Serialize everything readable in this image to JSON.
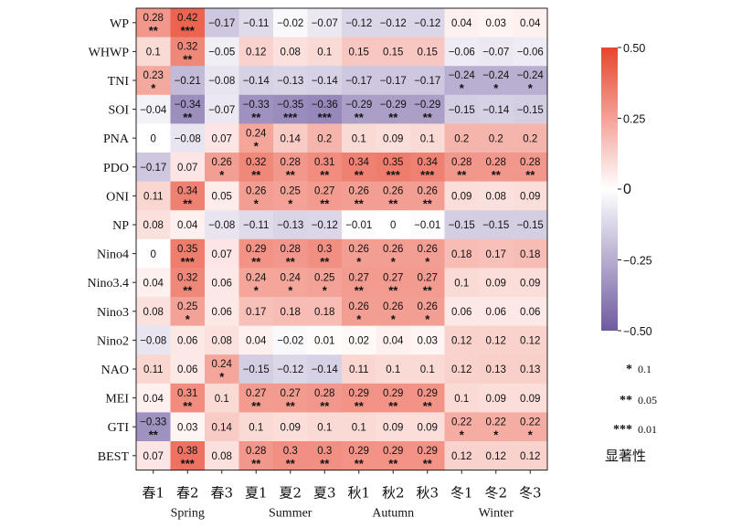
{
  "chart_data": {
    "type": "heatmap",
    "rows": [
      "WP",
      "WHWP",
      "TNI",
      "SOI",
      "PNA",
      "PDO",
      "ONI",
      "NP",
      "Nino4",
      "Nino3.4",
      "Nino3",
      "Nino2",
      "NAO",
      "MEI",
      "GTI",
      "BEST"
    ],
    "columns": [
      "春1",
      "春2",
      "春3",
      "夏1",
      "夏2",
      "夏3",
      "秋1",
      "秋2",
      "秋3",
      "冬1",
      "冬2",
      "冬3"
    ],
    "column_groups": [
      {
        "label": "Spring",
        "columns": [
          0,
          1,
          2
        ]
      },
      {
        "label": "Summer",
        "columns": [
          3,
          4,
          5
        ]
      },
      {
        "label": "Autumn",
        "columns": [
          6,
          7,
          8
        ]
      },
      {
        "label": "Winter",
        "columns": [
          9,
          10,
          11
        ]
      }
    ],
    "values": [
      [
        0.28,
        0.42,
        -0.17,
        -0.11,
        -0.02,
        -0.07,
        -0.12,
        -0.12,
        -0.12,
        0.04,
        0.03,
        0.04
      ],
      [
        0.1,
        0.32,
        -0.05,
        0.12,
        0.08,
        0.1,
        0.15,
        0.15,
        0.15,
        -0.06,
        -0.07,
        -0.06
      ],
      [
        0.23,
        -0.21,
        -0.08,
        -0.14,
        -0.13,
        -0.14,
        -0.17,
        -0.17,
        -0.17,
        -0.24,
        -0.24,
        -0.24
      ],
      [
        -0.04,
        -0.34,
        -0.07,
        -0.33,
        -0.35,
        -0.36,
        -0.29,
        -0.29,
        -0.29,
        -0.15,
        -0.14,
        -0.15
      ],
      [
        0,
        -0.08,
        0.07,
        0.24,
        0.14,
        0.2,
        0.1,
        0.09,
        0.1,
        0.2,
        0.2,
        0.2
      ],
      [
        -0.17,
        0.07,
        0.26,
        0.32,
        0.28,
        0.31,
        0.34,
        0.35,
        0.34,
        0.28,
        0.28,
        0.28
      ],
      [
        0.11,
        0.34,
        0.05,
        0.26,
        0.25,
        0.27,
        0.26,
        0.26,
        0.26,
        0.09,
        0.08,
        0.09
      ],
      [
        0.08,
        0.04,
        -0.08,
        -0.11,
        -0.13,
        -0.12,
        -0.01,
        0,
        -0.01,
        -0.15,
        -0.15,
        -0.15
      ],
      [
        0,
        0.35,
        0.07,
        0.29,
        0.28,
        0.3,
        0.26,
        0.26,
        0.26,
        0.18,
        0.17,
        0.18
      ],
      [
        0.04,
        0.32,
        0.06,
        0.24,
        0.24,
        0.25,
        0.27,
        0.27,
        0.27,
        0.1,
        0.09,
        0.09
      ],
      [
        0.08,
        0.25,
        0.06,
        0.17,
        0.18,
        0.18,
        0.26,
        0.26,
        0.26,
        0.06,
        0.06,
        0.06
      ],
      [
        -0.08,
        0.06,
        0.08,
        0.04,
        -0.02,
        0.01,
        0.02,
        0.04,
        0.03,
        0.12,
        0.12,
        0.12
      ],
      [
        0.11,
        0.06,
        0.24,
        -0.15,
        -0.12,
        -0.14,
        0.11,
        0.1,
        0.1,
        0.12,
        0.13,
        0.13
      ],
      [
        0.04,
        0.31,
        0.1,
        0.27,
        0.27,
        0.28,
        0.29,
        0.29,
        0.29,
        0.1,
        0.09,
        0.09
      ],
      [
        -0.33,
        0.03,
        0.14,
        0.1,
        0.09,
        0.1,
        0.1,
        0.09,
        0.09,
        0.22,
        0.22,
        0.22
      ],
      [
        0.07,
        0.38,
        0.08,
        0.28,
        0.3,
        0.3,
        0.29,
        0.29,
        0.29,
        0.12,
        0.12,
        0.12
      ]
    ],
    "stars": [
      [
        "**",
        "***",
        "",
        "",
        "",
        "",
        "",
        "",
        "",
        "",
        "",
        ""
      ],
      [
        "",
        "**",
        "",
        "",
        "",
        "",
        "",
        "",
        "",
        "",
        "",
        ""
      ],
      [
        "*",
        "",
        "",
        "",
        "",
        "",
        "",
        "",
        "",
        "*",
        "*",
        "*"
      ],
      [
        "",
        "**",
        "",
        "**",
        "***",
        "***",
        "**",
        "**",
        "**",
        "",
        "",
        ""
      ],
      [
        "",
        "",
        "",
        "*",
        "",
        "",
        "",
        "",
        "",
        "",
        "",
        ""
      ],
      [
        "",
        "",
        "*",
        "**",
        "**",
        "**",
        "**",
        "***",
        "***",
        "**",
        "**",
        "**"
      ],
      [
        "",
        "**",
        "",
        "*",
        "*",
        "**",
        "**",
        "**",
        "**",
        "",
        "",
        ""
      ],
      [
        "",
        "",
        "",
        "",
        "",
        "",
        "",
        "",
        "",
        "",
        "",
        ""
      ],
      [
        "",
        "***",
        "",
        "**",
        "**",
        "**",
        "*",
        "*",
        "*",
        "",
        "",
        ""
      ],
      [
        "",
        "**",
        "",
        "*",
        "*",
        "*",
        "**",
        "**",
        "**",
        "",
        "",
        ""
      ],
      [
        "",
        "*",
        "",
        "",
        "",
        "",
        "*",
        "*",
        "*",
        "",
        "",
        ""
      ],
      [
        "",
        "",
        "",
        "",
        "",
        "",
        "",
        "",
        "",
        "",
        "",
        ""
      ],
      [
        "",
        "",
        "*",
        "",
        "",
        "",
        "",
        "",
        "",
        "",
        "",
        ""
      ],
      [
        "",
        "**",
        "",
        "**",
        "**",
        "**",
        "**",
        "**",
        "**",
        "",
        "",
        ""
      ],
      [
        "**",
        "",
        "",
        "",
        "",
        "",
        "",
        "",
        "",
        "*",
        "*",
        "*"
      ],
      [
        "",
        "***",
        "",
        "**",
        "**",
        "**",
        "**",
        "**",
        "**",
        "",
        "",
        ""
      ]
    ],
    "colorbar": {
      "min": -0.5,
      "max": 0.5,
      "ticks": [
        0.5,
        0.25,
        0,
        -0.25,
        -0.5
      ],
      "tick_labels": [
        "0.50",
        "0.25",
        "0",
        "−0.25",
        "−0.50"
      ]
    },
    "colors": {
      "positive": "#e8452f",
      "zero": "#ffffff",
      "negative": "#6e5aa0"
    },
    "legend": {
      "significance": [
        {
          "mark": "*",
          "value": "0.1"
        },
        {
          "mark": "**",
          "value": "0.05"
        },
        {
          "mark": "***",
          "value": "0.01"
        }
      ],
      "title": "显著性"
    }
  }
}
